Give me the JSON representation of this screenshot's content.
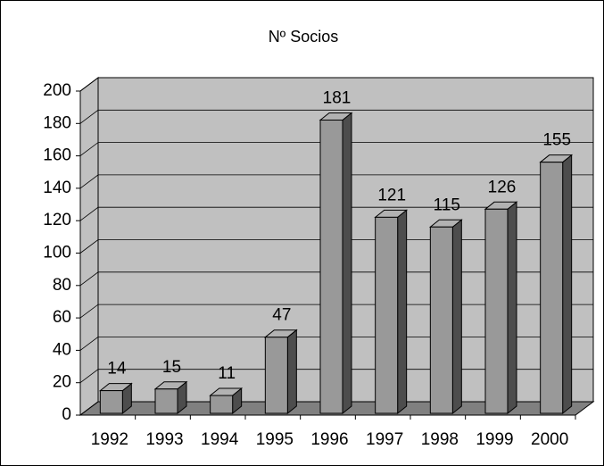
{
  "chart_data": {
    "type": "bar3d",
    "title": "Nº Socios",
    "categories": [
      "1992",
      "1993",
      "1994",
      "1995",
      "1996",
      "1997",
      "1998",
      "1999",
      "2000"
    ],
    "values": [
      14,
      15,
      11,
      47,
      181,
      121,
      115,
      126,
      155
    ],
    "color": "#999999",
    "ylim": [
      0,
      200
    ],
    "yticks": [
      0,
      20,
      40,
      60,
      80,
      100,
      120,
      140,
      160,
      180,
      200
    ],
    "grid": true
  }
}
